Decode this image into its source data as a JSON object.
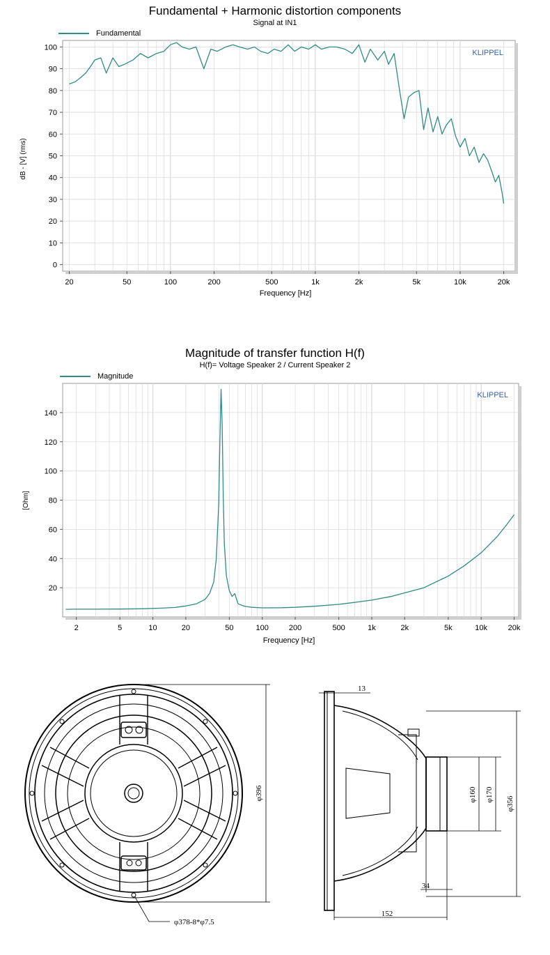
{
  "colors": {
    "curve": "#2e8b86",
    "grid": "#d9d9d9",
    "frame": "#9a9a9a",
    "brand": "#3a5fa0"
  },
  "chart_data": [
    {
      "type": "line",
      "title": "Fundamental + Harmonic distortion components",
      "subtitle": "Signal at IN1",
      "xlabel": "Frequency [Hz]",
      "ylabel": "dB - [V] (rms)",
      "xscale": "log",
      "xlim": [
        18,
        24000
      ],
      "ylim": [
        -3,
        103
      ],
      "grid": true,
      "legend_position": "top-left",
      "brand": "KLIPPEL",
      "xticks": [
        20,
        50,
        100,
        200,
        500,
        1000,
        2000,
        5000,
        10000,
        20000
      ],
      "xtick_labels": [
        "20",
        "50",
        "100",
        "200",
        "500",
        "1k",
        "2k",
        "5k",
        "10k",
        "20k"
      ],
      "yticks": [
        0,
        10,
        20,
        30,
        40,
        50,
        60,
        70,
        80,
        90,
        100
      ],
      "series": [
        {
          "name": "Fundamental",
          "x": [
            20,
            22,
            24,
            26,
            28,
            30,
            33,
            36,
            40,
            44,
            48,
            55,
            62,
            70,
            80,
            90,
            100,
            110,
            120,
            135,
            150,
            170,
            190,
            210,
            240,
            270,
            300,
            340,
            380,
            420,
            470,
            520,
            580,
            650,
            720,
            800,
            900,
            1000,
            1100,
            1250,
            1400,
            1600,
            1800,
            2000,
            2200,
            2400,
            2700,
            3000,
            3200,
            3500,
            3800,
            4100,
            4400,
            4800,
            5200,
            5600,
            6000,
            6500,
            7000,
            7500,
            8000,
            8700,
            9300,
            10000,
            10800,
            11600,
            12500,
            13500,
            14500,
            15500,
            16500,
            17500,
            18500,
            19500,
            20000
          ],
          "y": [
            83,
            84,
            86,
            88,
            91,
            94,
            95,
            88,
            95,
            91,
            92,
            94,
            97,
            95,
            97,
            98,
            101,
            102,
            100,
            99,
            100,
            90,
            99,
            98,
            100,
            101,
            100,
            99,
            100,
            98,
            97,
            99,
            98,
            101,
            98,
            100,
            99,
            101,
            99,
            100,
            100,
            99,
            97,
            101,
            93,
            99,
            94,
            98,
            92,
            97,
            81,
            67,
            77,
            79,
            80,
            62,
            72,
            61,
            68,
            60,
            64,
            67,
            59,
            54,
            58,
            50,
            54,
            47,
            51,
            48,
            43,
            38,
            41,
            33,
            28
          ]
        }
      ]
    },
    {
      "type": "line",
      "title": "Magnitude of transfer function H(f)",
      "subtitle": "H(f)= Voltage Speaker 2 / Current Speaker 2",
      "xlabel": "Frequency [Hz]",
      "ylabel": "[Ohm]",
      "xscale": "log",
      "xlim": [
        1.5,
        22000
      ],
      "ylim": [
        0,
        160
      ],
      "grid": true,
      "legend_position": "top-left",
      "brand": "KLIPPEL",
      "xticks": [
        2,
        5,
        10,
        20,
        50,
        100,
        200,
        500,
        1000,
        2000,
        5000,
        10000,
        20000
      ],
      "xtick_labels": [
        "2",
        "5",
        "10",
        "20",
        "50",
        "100",
        "200",
        "500",
        "1k",
        "2k",
        "5k",
        "10k",
        "20k"
      ],
      "yticks": [
        20,
        40,
        60,
        80,
        100,
        120,
        140
      ],
      "series": [
        {
          "name": "Magnitude",
          "x": [
            1.6,
            2,
            3,
            5,
            8,
            12,
            16,
            20,
            25,
            30,
            33,
            36,
            38,
            40,
            41,
            42,
            43,
            44,
            45,
            47,
            50,
            53,
            56,
            60,
            65,
            70,
            80,
            100,
            150,
            200,
            300,
            500,
            700,
            1000,
            1500,
            2000,
            3000,
            5000,
            7000,
            10000,
            14000,
            17000,
            20000
          ],
          "y": [
            5.2,
            5.3,
            5.3,
            5.4,
            5.6,
            6,
            6.5,
            7.5,
            9,
            12,
            16,
            24,
            40,
            78,
            122,
            156,
            132,
            82,
            50,
            28,
            18,
            14,
            16,
            9,
            8,
            7.2,
            6.6,
            6.2,
            6.3,
            6.6,
            7.3,
            8.6,
            10,
            11.5,
            14,
            16.5,
            20,
            28,
            35,
            44,
            55,
            63,
            70
          ]
        }
      ]
    }
  ],
  "drawing": {
    "front_view": {
      "diameter_label": "φ396",
      "mounting_label": "φ378-8*φ7.5"
    },
    "side_view": {
      "flange_label": "13",
      "magnet_outer_label": "φ170",
      "magnet_inner_label": "φ160",
      "basket_label": "φ356",
      "magnet_depth_label": "34",
      "total_depth_label": "152"
    }
  }
}
